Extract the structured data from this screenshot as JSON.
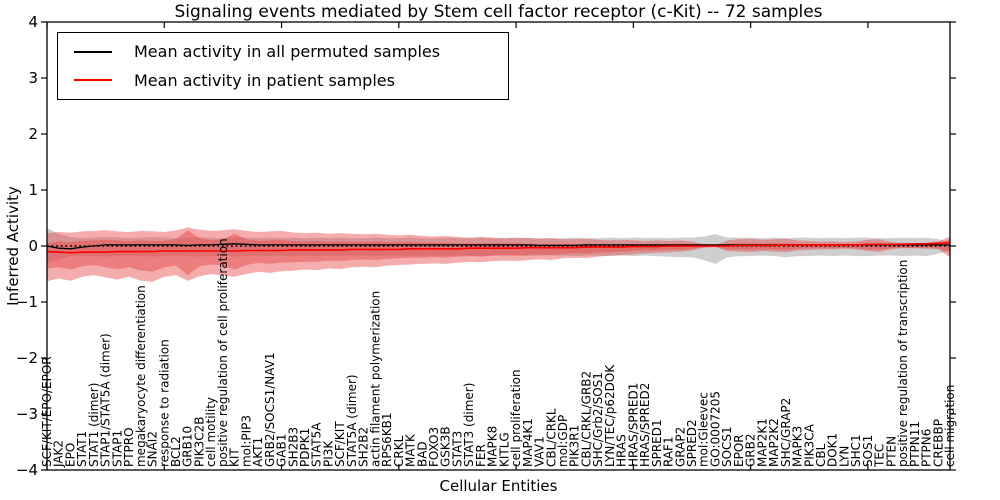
{
  "figure": {
    "title": "Signaling events mediated by Stem cell factor receptor (c-Kit) -- 72 samples"
  },
  "legend": {
    "items": [
      {
        "label": "Mean activity in all permuted samples",
        "color": "#000000"
      },
      {
        "label": "Mean activity in patient samples",
        "color": "#ff0000"
      }
    ]
  },
  "chart_data": {
    "type": "line",
    "title": "Signaling events mediated by Stem cell factor receptor (c-Kit) -- 72 samples",
    "xlabel": "Cellular Entities",
    "ylabel": "Inferred Activity",
    "ylim": [
      -4,
      4
    ],
    "ytick_values": [
      4,
      3,
      2,
      1,
      0,
      -1,
      -2,
      -3,
      -4
    ],
    "ytick_labels": [
      "4",
      "3",
      "2",
      "1",
      "0",
      "−1",
      "−2",
      "−3",
      "−4"
    ],
    "xtick_every": 10,
    "grid": false,
    "legend_position": "upper left",
    "colors": {
      "permuted_line": "#000000",
      "patient_line": "#ff0000",
      "permuted_band": "rgba(160,160,160,0.50)",
      "patient_band": "rgba(230,70,70,0.45)",
      "zero_line": "#000000"
    },
    "categories": [
      "SCF/KIT/EPO/EPOR",
      "JAK2",
      "EPO",
      "STAT1",
      "STAT1 (dimer)",
      "STAP1/STAT5A (dimer)",
      "STAP1",
      "PTPRO",
      "megakaryocyte differentiation",
      "SNAI2",
      "response to radiation",
      "BCL2",
      "GRB10",
      "PIK3C2B",
      "cell motility",
      "positive regulation of cell proliferation",
      "KIT",
      "mol:PIP3",
      "AKT1",
      "GRB2/SOCS1/NAV1",
      "GAB1",
      "SH2B3",
      "PDPK1",
      "STAT5A",
      "PI3K",
      "SCF/KIT",
      "STAT5A (dimer)",
      "SH2B2",
      "actin filament polymerization",
      "RPS6KB1",
      "CRKL",
      "MATK",
      "BAD",
      "FOXO3",
      "GSK3B",
      "STAT3",
      "STAT3 (dimer)",
      "FER",
      "MAPK8",
      "KITLG",
      "cell proliferation",
      "MAP4K1",
      "VAV1",
      "CBL/CRKL",
      "mol:GDP",
      "PIK3R1",
      "CBL/CRKL/GRB2",
      "SHC/Grb2/SOS1",
      "LYN/TEC/p62DOK",
      "HRAS",
      "HRAS/SPRED1",
      "HRAS/SPRED2",
      "SPRED1",
      "RAF1",
      "GRAP2",
      "SPRED2",
      "mol:Gleevec",
      "GO:0007205",
      "SOCS1",
      "EPOR",
      "GRB2",
      "MAP2K1",
      "MAP2K2",
      "SHC/GRAP2",
      "MAPK3",
      "PIK3CA",
      "CBL",
      "DOK1",
      "LYN",
      "SHC1",
      "SOS1",
      "TEC",
      "PTEN",
      "positive regulation of transcription",
      "PTPN11",
      "PTPN6",
      "CREBBP",
      "cell migration"
    ],
    "series": [
      {
        "name": "Mean activity in all permuted samples",
        "values": [
          0.0,
          -0.04,
          -0.05,
          -0.02,
          0.0,
          0.02,
          0.02,
          0.02,
          0.02,
          0.02,
          0.02,
          0.02,
          0.01,
          0.02,
          0.02,
          0.03,
          0.04,
          0.03,
          0.02,
          0.02,
          0.02,
          0.02,
          0.02,
          0.02,
          0.02,
          0.02,
          0.02,
          0.02,
          0.02,
          0.02,
          0.02,
          0.02,
          0.02,
          0.02,
          0.02,
          0.02,
          0.02,
          0.02,
          0.02,
          0.02,
          0.02,
          0.02,
          0.01,
          0.01,
          0.01,
          0.01,
          0.02,
          0.02,
          0.02,
          0.02,
          0.02,
          0.02,
          0.02,
          0.02,
          0.02,
          0.02,
          0.02,
          0.02,
          0.02,
          0.02,
          0.02,
          0.02,
          0.02,
          0.02,
          0.02,
          0.02,
          0.02,
          0.02,
          0.02,
          0.02,
          0.02,
          0.02,
          0.02,
          0.02,
          0.02,
          0.02,
          0.02,
          0.02
        ]
      },
      {
        "name": "Mean activity in patient samples",
        "values": [
          -0.1,
          -0.11,
          -0.12,
          -0.11,
          -0.11,
          -0.11,
          -0.1,
          -0.1,
          -0.1,
          -0.1,
          -0.09,
          -0.09,
          -0.09,
          -0.09,
          -0.09,
          -0.09,
          -0.09,
          -0.08,
          -0.08,
          -0.08,
          -0.08,
          -0.07,
          -0.07,
          -0.07,
          -0.07,
          -0.07,
          -0.06,
          -0.06,
          -0.06,
          -0.06,
          -0.06,
          -0.05,
          -0.05,
          -0.05,
          -0.05,
          -0.05,
          -0.04,
          -0.04,
          -0.04,
          -0.04,
          -0.04,
          -0.03,
          -0.03,
          -0.03,
          -0.03,
          -0.03,
          -0.02,
          -0.02,
          -0.02,
          -0.02,
          -0.01,
          -0.01,
          -0.01,
          0.0,
          0.0,
          0.0,
          0.0,
          0.0,
          0.0,
          0.01,
          0.01,
          0.01,
          0.01,
          0.02,
          0.02,
          0.02,
          0.02,
          0.02,
          0.02,
          0.02,
          0.03,
          0.03,
          0.03,
          0.03,
          0.04,
          0.04,
          0.05,
          0.06
        ]
      }
    ],
    "bands": [
      {
        "name": "permuted-band",
        "upper": [
          0.32,
          0.22,
          0.16,
          0.14,
          0.15,
          0.16,
          0.15,
          0.14,
          0.15,
          0.16,
          0.15,
          0.14,
          0.15,
          0.16,
          0.15,
          0.14,
          0.16,
          0.15,
          0.14,
          0.15,
          0.14,
          0.15,
          0.14,
          0.15,
          0.14,
          0.15,
          0.14,
          0.14,
          0.15,
          0.14,
          0.14,
          0.15,
          0.14,
          0.14,
          0.15,
          0.14,
          0.14,
          0.15,
          0.14,
          0.14,
          0.14,
          0.15,
          0.14,
          0.14,
          0.14,
          0.15,
          0.14,
          0.14,
          0.15,
          0.14,
          0.15,
          0.14,
          0.15,
          0.14,
          0.15,
          0.15,
          0.17,
          0.21,
          0.15,
          0.15,
          0.15,
          0.14,
          0.15,
          0.14,
          0.15,
          0.15,
          0.14,
          0.15,
          0.14,
          0.15,
          0.15,
          0.14,
          0.14,
          0.15,
          0.14,
          0.15,
          0.12,
          0.08
        ],
        "lower": [
          -0.3,
          -0.24,
          -0.18,
          -0.17,
          -0.18,
          -0.19,
          -0.18,
          -0.17,
          -0.18,
          -0.19,
          -0.18,
          -0.17,
          -0.18,
          -0.19,
          -0.18,
          -0.17,
          -0.19,
          -0.18,
          -0.17,
          -0.18,
          -0.17,
          -0.18,
          -0.17,
          -0.18,
          -0.17,
          -0.18,
          -0.17,
          -0.17,
          -0.18,
          -0.17,
          -0.17,
          -0.18,
          -0.17,
          -0.17,
          -0.18,
          -0.17,
          -0.17,
          -0.18,
          -0.17,
          -0.17,
          -0.17,
          -0.18,
          -0.17,
          -0.17,
          -0.17,
          -0.18,
          -0.17,
          -0.17,
          -0.18,
          -0.17,
          -0.18,
          -0.17,
          -0.18,
          -0.19,
          -0.2,
          -0.2,
          -0.25,
          -0.32,
          -0.2,
          -0.18,
          -0.18,
          -0.17,
          -0.18,
          -0.2,
          -0.18,
          -0.18,
          -0.17,
          -0.18,
          -0.17,
          -0.18,
          -0.18,
          -0.17,
          -0.17,
          -0.18,
          -0.17,
          -0.18,
          -0.14,
          -0.08
        ]
      },
      {
        "name": "patient-band-outer",
        "upper": [
          0.23,
          0.25,
          0.24,
          0.26,
          0.27,
          0.28,
          0.26,
          0.25,
          0.27,
          0.26,
          0.25,
          0.28,
          0.33,
          0.29,
          0.27,
          0.28,
          0.3,
          0.27,
          0.25,
          0.26,
          0.27,
          0.24,
          0.23,
          0.24,
          0.22,
          0.23,
          0.22,
          0.21,
          0.22,
          0.2,
          0.19,
          0.2,
          0.18,
          0.17,
          0.18,
          0.16,
          0.15,
          0.16,
          0.15,
          0.14,
          0.15,
          0.14,
          0.13,
          0.14,
          0.12,
          0.12,
          0.13,
          0.11,
          0.1,
          0.11,
          0.1,
          0.09,
          0.1,
          0.09,
          0.1,
          0.08,
          0.03,
          0.02,
          0.1,
          0.12,
          0.13,
          0.11,
          0.12,
          0.13,
          0.1,
          0.09,
          0.08,
          0.08,
          0.07,
          0.08,
          0.11,
          0.12,
          0.07,
          0.05,
          0.05,
          0.06,
          0.08,
          0.17
        ],
        "lower": [
          -0.63,
          -0.58,
          -0.62,
          -0.55,
          -0.52,
          -0.56,
          -0.6,
          -0.55,
          -0.62,
          -0.64,
          -0.55,
          -0.52,
          -0.62,
          -0.54,
          -0.5,
          -0.53,
          -0.55,
          -0.5,
          -0.46,
          -0.48,
          -0.45,
          -0.44,
          -0.42,
          -0.43,
          -0.4,
          -0.41,
          -0.38,
          -0.37,
          -0.38,
          -0.35,
          -0.34,
          -0.33,
          -0.32,
          -0.31,
          -0.32,
          -0.3,
          -0.28,
          -0.29,
          -0.27,
          -0.26,
          -0.27,
          -0.25,
          -0.24,
          -0.25,
          -0.22,
          -0.21,
          -0.22,
          -0.19,
          -0.17,
          -0.16,
          -0.15,
          -0.13,
          -0.12,
          -0.11,
          -0.1,
          -0.08,
          -0.03,
          -0.02,
          -0.09,
          -0.1,
          -0.11,
          -0.09,
          -0.1,
          -0.11,
          -0.08,
          -0.07,
          -0.06,
          -0.06,
          -0.05,
          -0.06,
          -0.09,
          -0.1,
          -0.06,
          -0.04,
          -0.04,
          -0.05,
          -0.06,
          -0.2
        ]
      },
      {
        "name": "patient-band-inner",
        "upper": [
          0.05,
          0.08,
          0.07,
          0.09,
          0.1,
          0.11,
          0.1,
          0.09,
          0.1,
          0.09,
          0.09,
          0.13,
          0.28,
          0.14,
          0.1,
          0.12,
          0.22,
          0.12,
          0.09,
          0.1,
          0.11,
          0.09,
          0.08,
          0.09,
          0.08,
          0.08,
          0.08,
          0.07,
          0.08,
          0.07,
          0.07,
          0.07,
          0.06,
          0.06,
          0.06,
          0.05,
          0.05,
          0.05,
          0.05,
          0.05,
          0.05,
          0.04,
          0.04,
          0.04,
          0.04,
          0.04,
          0.04,
          0.03,
          0.03,
          0.03,
          0.03,
          0.03,
          0.03,
          0.03,
          0.03,
          0.02,
          0.01,
          0.01,
          0.04,
          0.05,
          0.05,
          0.04,
          0.05,
          0.05,
          0.04,
          0.03,
          0.03,
          0.03,
          0.03,
          0.03,
          0.04,
          0.05,
          0.03,
          0.02,
          0.02,
          0.02,
          0.03,
          0.12
        ],
        "lower": [
          -0.4,
          -0.38,
          -0.42,
          -0.36,
          -0.34,
          -0.38,
          -0.42,
          -0.38,
          -0.44,
          -0.46,
          -0.38,
          -0.35,
          -0.52,
          -0.36,
          -0.33,
          -0.35,
          -0.42,
          -0.34,
          -0.3,
          -0.32,
          -0.3,
          -0.29,
          -0.28,
          -0.28,
          -0.26,
          -0.27,
          -0.25,
          -0.24,
          -0.25,
          -0.23,
          -0.22,
          -0.21,
          -0.21,
          -0.2,
          -0.21,
          -0.19,
          -0.18,
          -0.19,
          -0.17,
          -0.17,
          -0.17,
          -0.16,
          -0.15,
          -0.16,
          -0.14,
          -0.13,
          -0.14,
          -0.12,
          -0.11,
          -0.1,
          -0.09,
          -0.08,
          -0.08,
          -0.07,
          -0.07,
          -0.05,
          -0.02,
          -0.01,
          -0.06,
          -0.06,
          -0.07,
          -0.06,
          -0.06,
          -0.07,
          -0.05,
          -0.04,
          -0.04,
          -0.04,
          -0.03,
          -0.04,
          -0.06,
          -0.06,
          -0.04,
          -0.03,
          -0.03,
          -0.03,
          -0.04,
          -0.12
        ]
      }
    ]
  }
}
